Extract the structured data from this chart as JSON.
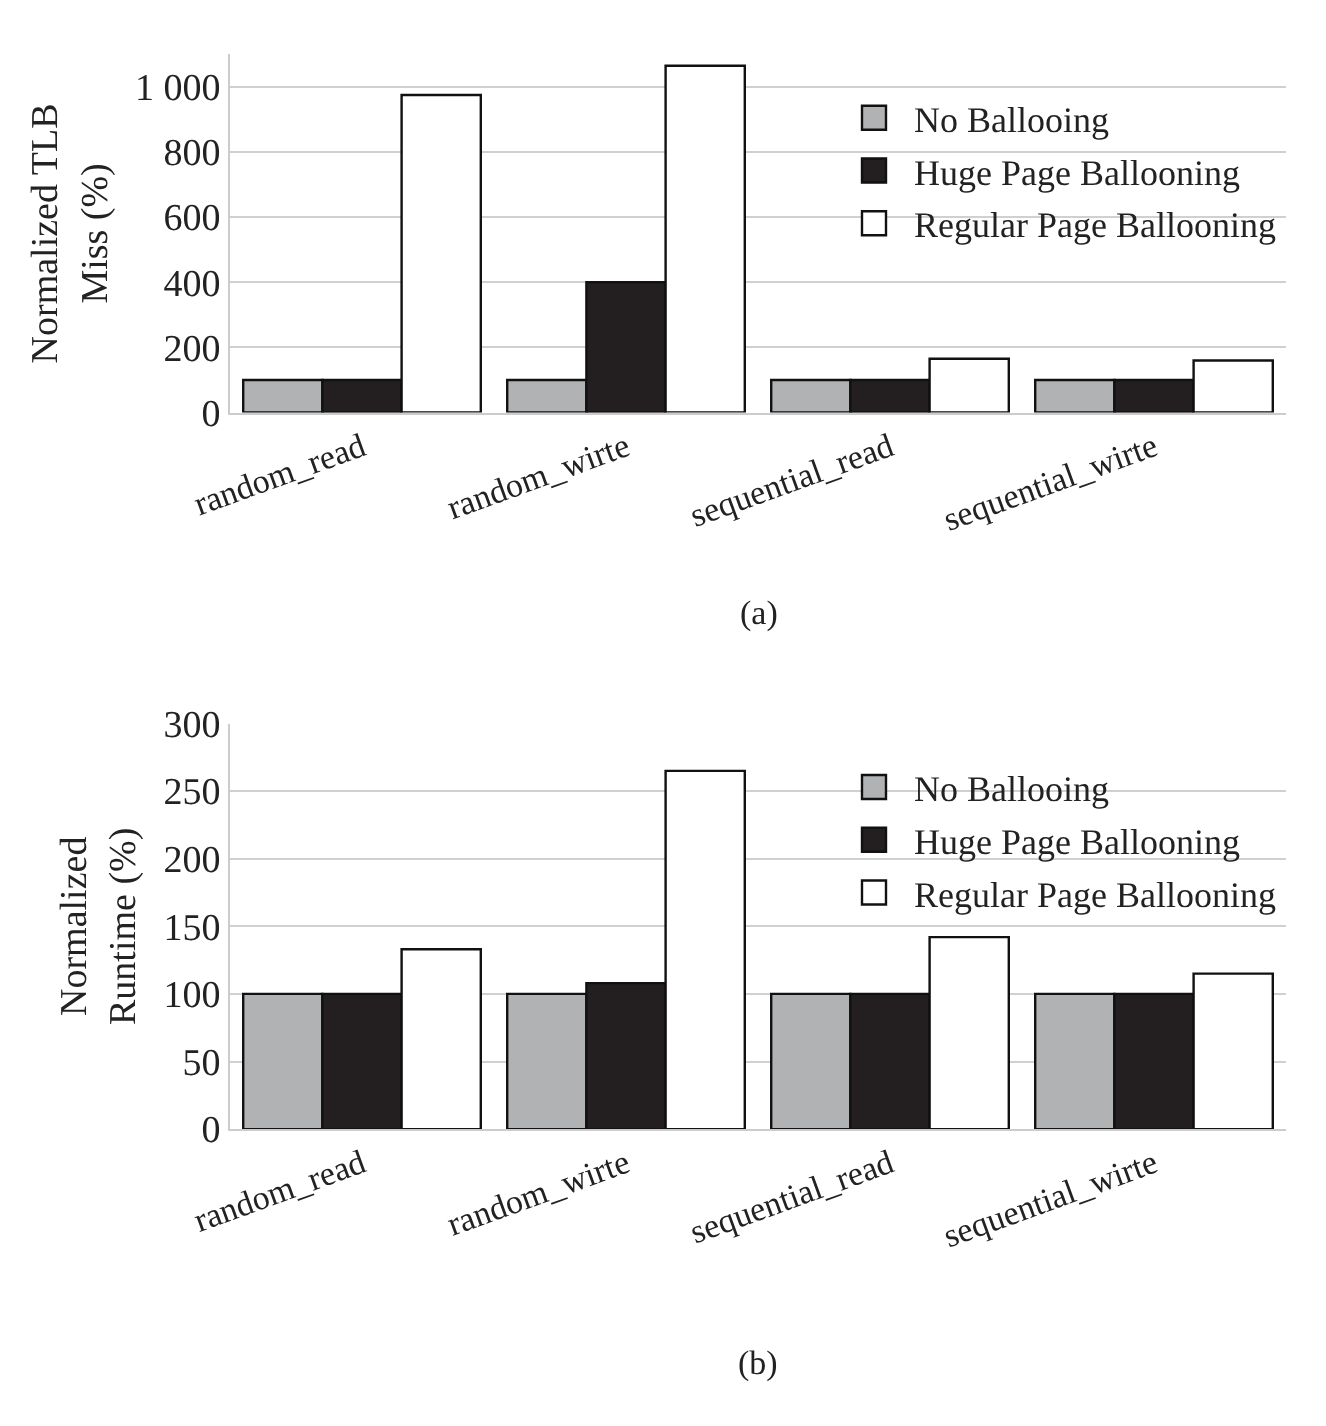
{
  "chart_data": [
    {
      "type": "bar",
      "ylabel": "Normalized TLB\nMiss (%)",
      "annotations": [
        "(a)"
      ],
      "categories": [
        "random_read",
        "random_wirte",
        "sequential_read",
        "sequential_wirte"
      ],
      "series": [
        {
          "name": "No Ballooing",
          "color": "#b1b2b4",
          "values": [
            100,
            100,
            100,
            100
          ]
        },
        {
          "name": "Huge Page Ballooning",
          "color": "#231f20",
          "values": [
            100,
            400,
            100,
            100
          ]
        },
        {
          "name": "Regular Page Ballooning",
          "color": "#ffffff",
          "values": [
            975,
            1065,
            165,
            160
          ]
        }
      ],
      "ylim": [
        0,
        1100
      ],
      "yticks": [
        0,
        200,
        400,
        600,
        800,
        {
          "value": 1000,
          "label": "1 000"
        }
      ],
      "grid": "y",
      "legend": "top right"
    },
    {
      "type": "bar",
      "ylabel": "Normalized\nRuntime (%)",
      "annotations": [
        "(b)"
      ],
      "categories": [
        "random_read",
        "random_wirte",
        "sequential_read",
        "sequential_wirte"
      ],
      "series": [
        {
          "name": "No Ballooing",
          "color": "#b1b2b4",
          "values": [
            100,
            100,
            100,
            100
          ]
        },
        {
          "name": "Huge Page Ballooning",
          "color": "#231f20",
          "values": [
            100,
            108,
            100,
            100
          ]
        },
        {
          "name": "Regular Page Ballooning",
          "color": "#ffffff",
          "values": [
            133,
            265,
            142,
            115
          ]
        }
      ],
      "ylim": [
        0,
        300
      ],
      "yticks": [
        0,
        50,
        100,
        150,
        200,
        250,
        300
      ],
      "grid": "y",
      "legend": "top right"
    }
  ]
}
